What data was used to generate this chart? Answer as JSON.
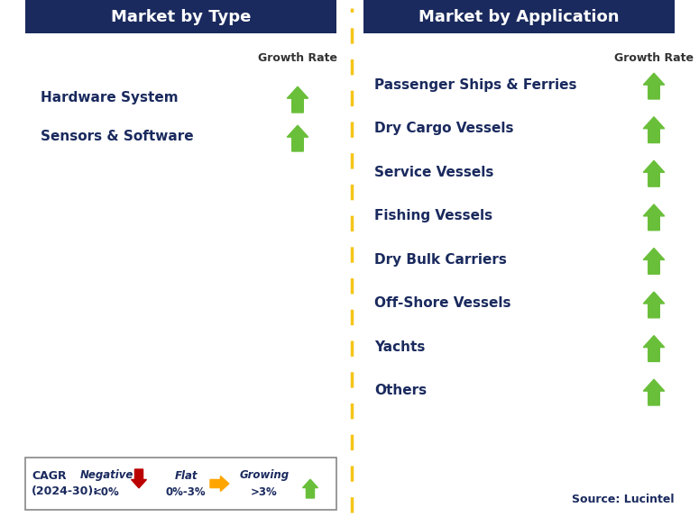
{
  "title_left": "Market by Type",
  "title_right": "Market by Application",
  "header_bg_color": "#1a2a5e",
  "header_text_color": "#ffffff",
  "left_items": [
    "Hardware System",
    "Sensors & Software"
  ],
  "right_items": [
    "Passenger Ships & Ferries",
    "Dry Cargo Vessels",
    "Service Vessels",
    "Fishing Vessels",
    "Dry Bulk Carriers",
    "Off-Shore Vessels",
    "Yachts",
    "Others"
  ],
  "item_text_color": "#1a2a5e",
  "growth_rate_label": "Growth Rate",
  "growth_rate_color": "#333333",
  "arrow_up_color": "#6abf3a",
  "arrow_down_color": "#bb0000",
  "arrow_flat_color": "#ffa500",
  "dashed_line_color": "#f5c518",
  "legend_label_line1": "CAGR",
  "legend_label_line2": "(2024-30):",
  "legend_negative_label": "Negative",
  "legend_negative_sub": "<0%",
  "legend_flat_label": "Flat",
  "legend_flat_sub": "0%-3%",
  "legend_growing_label": "Growing",
  "legend_growing_sub": ">3%",
  "source_text": "Source: Lucintel",
  "bg_color": "#ffffff"
}
